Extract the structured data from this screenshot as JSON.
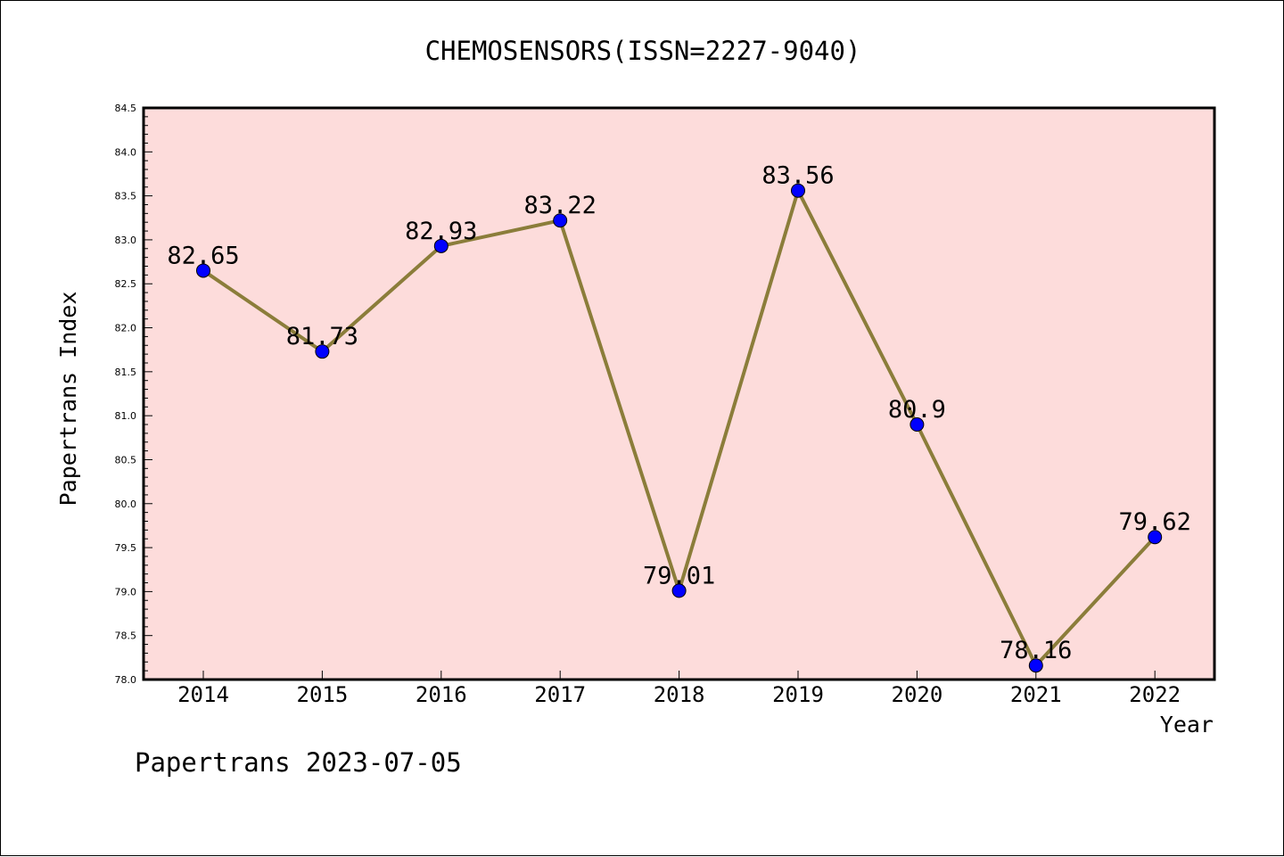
{
  "chart_data": {
    "type": "line",
    "title": "CHEMOSENSORS(ISSN=2227-9040)",
    "xlabel": "Year",
    "ylabel": "Papertrans Index",
    "categories": [
      "2014",
      "2015",
      "2016",
      "2017",
      "2018",
      "2019",
      "2020",
      "2021",
      "2022"
    ],
    "series": [
      {
        "values": [
          82.65,
          81.73,
          82.93,
          83.22,
          79.01,
          83.56,
          80.9,
          78.16,
          79.62
        ],
        "labels": [
          "82.65",
          "81.73",
          "82.93",
          "83.22",
          "79.01",
          "83.56",
          "80.9",
          "78.16",
          "79.62"
        ],
        "line_color": "#8b7d3a",
        "marker_color": "#0000ff"
      }
    ],
    "ylim": [
      78.0,
      84.5
    ],
    "yticks": [
      "78.0",
      "78.5",
      "79.0",
      "79.5",
      "80.0",
      "80.5",
      "81.0",
      "81.5",
      "82.0",
      "82.5",
      "83.0",
      "83.5",
      "84.0",
      "84.5"
    ],
    "plot_background": "#fddcdb",
    "grid": false,
    "legend": "none"
  },
  "footer": "Papertrans 2023-07-05"
}
